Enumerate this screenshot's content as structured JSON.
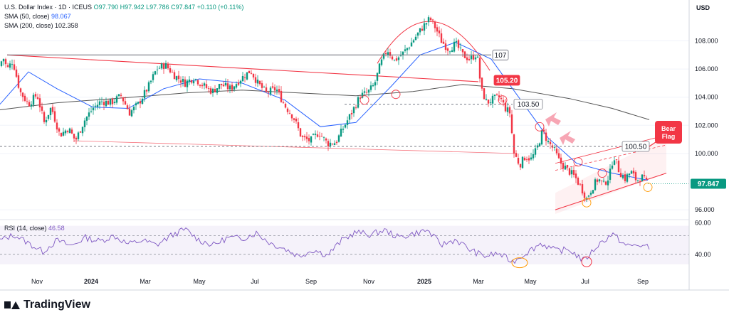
{
  "header": {
    "symbol": "U.S. Dollar Index · 1D · ICEUS",
    "ohlc": "O97.790  H97.942  L97.786  C97.847  +0.110 (+0.11%)",
    "sma50_label": "SMA (50, close)",
    "sma50_value": "98.067",
    "sma200_label": "SMA (200, close)",
    "sma200_value": "102.358",
    "currency": "USD"
  },
  "rsi_panel": {
    "label": "RSI (14, close)",
    "value": "46.58",
    "levels": [
      "60.00",
      "40.00"
    ]
  },
  "brand": {
    "name": "TradingView"
  },
  "colors": {
    "up": "#089981",
    "down": "#f23645",
    "sma50": "#2962ff",
    "sma200": "#555555",
    "rsi": "#7e57c2",
    "trend": "#f23645",
    "accent": "#f23645"
  },
  "chart_data": {
    "type": "candlestick",
    "x_labels": [
      "Nov",
      "2024",
      "Mar",
      "May",
      "Jul",
      "Sep",
      "Nov",
      "2025",
      "Mar",
      "May",
      "Jul",
      "Sep"
    ],
    "y_ticks": [
      "108.000",
      "106.000",
      "104.000",
      "102.000",
      "100.000",
      "96.000"
    ],
    "last_price": "97.847",
    "ylim": [
      95.5,
      110.5
    ],
    "price_path": [
      {
        "t": 0,
        "v": 106.2
      },
      {
        "t": 4,
        "v": 106.9
      },
      {
        "t": 10,
        "v": 106.0
      },
      {
        "t": 18,
        "v": 106.6
      },
      {
        "t": 28,
        "v": 104.4
      },
      {
        "t": 40,
        "v": 103.5
      },
      {
        "t": 52,
        "v": 104.2
      },
      {
        "t": 62,
        "v": 102.2
      },
      {
        "t": 72,
        "v": 103.3
      },
      {
        "t": 84,
        "v": 101.3
      },
      {
        "t": 96,
        "v": 101.8
      },
      {
        "t": 106,
        "v": 100.9
      },
      {
        "t": 118,
        "v": 102.3
      },
      {
        "t": 130,
        "v": 103.2
      },
      {
        "t": 142,
        "v": 103.7
      },
      {
        "t": 156,
        "v": 103.6
      },
      {
        "t": 170,
        "v": 104.1
      },
      {
        "t": 182,
        "v": 102.9
      },
      {
        "t": 194,
        "v": 103.5
      },
      {
        "t": 208,
        "v": 104.7
      },
      {
        "t": 220,
        "v": 106.0
      },
      {
        "t": 232,
        "v": 106.3
      },
      {
        "t": 246,
        "v": 105.5
      },
      {
        "t": 260,
        "v": 105.0
      },
      {
        "t": 272,
        "v": 105.4
      },
      {
        "t": 286,
        "v": 104.8
      },
      {
        "t": 298,
        "v": 104.4
      },
      {
        "t": 310,
        "v": 104.9
      },
      {
        "t": 324,
        "v": 104.6
      },
      {
        "t": 338,
        "v": 105.3
      },
      {
        "t": 352,
        "v": 105.9
      },
      {
        "t": 362,
        "v": 105.0
      },
      {
        "t": 374,
        "v": 104.3
      },
      {
        "t": 388,
        "v": 104.6
      },
      {
        "t": 400,
        "v": 103.4
      },
      {
        "t": 412,
        "v": 102.6
      },
      {
        "t": 424,
        "v": 101.1
      },
      {
        "t": 436,
        "v": 100.9
      },
      {
        "t": 448,
        "v": 101.5
      },
      {
        "t": 460,
        "v": 100.7
      },
      {
        "t": 472,
        "v": 100.8
      },
      {
        "t": 482,
        "v": 101.8
      },
      {
        "t": 494,
        "v": 102.9
      },
      {
        "t": 506,
        "v": 104.1
      },
      {
        "t": 516,
        "v": 104.3
      },
      {
        "t": 526,
        "v": 104.9
      },
      {
        "t": 534,
        "v": 106.3
      },
      {
        "t": 544,
        "v": 107.4
      },
      {
        "t": 554,
        "v": 106.6
      },
      {
        "t": 564,
        "v": 107.0
      },
      {
        "t": 574,
        "v": 107.6
      },
      {
        "t": 584,
        "v": 108.3
      },
      {
        "t": 594,
        "v": 109.0
      },
      {
        "t": 604,
        "v": 109.6
      },
      {
        "t": 612,
        "v": 108.9
      },
      {
        "t": 620,
        "v": 108.0
      },
      {
        "t": 630,
        "v": 107.4
      },
      {
        "t": 640,
        "v": 107.8
      },
      {
        "t": 650,
        "v": 107.0
      },
      {
        "t": 660,
        "v": 106.7
      },
      {
        "t": 670,
        "v": 107.1
      },
      {
        "t": 676,
        "v": 104.5
      },
      {
        "t": 684,
        "v": 103.6
      },
      {
        "t": 694,
        "v": 103.9
      },
      {
        "t": 702,
        "v": 104.0
      },
      {
        "t": 710,
        "v": 103.2
      },
      {
        "t": 716,
        "v": 102.9
      },
      {
        "t": 722,
        "v": 100.0
      },
      {
        "t": 730,
        "v": 99.2
      },
      {
        "t": 738,
        "v": 99.8
      },
      {
        "t": 746,
        "v": 99.6
      },
      {
        "t": 754,
        "v": 100.3
      },
      {
        "t": 762,
        "v": 101.6
      },
      {
        "t": 770,
        "v": 100.8
      },
      {
        "t": 778,
        "v": 100.3
      },
      {
        "t": 786,
        "v": 99.4
      },
      {
        "t": 794,
        "v": 99.0
      },
      {
        "t": 800,
        "v": 98.7
      },
      {
        "t": 808,
        "v": 98.3
      },
      {
        "t": 816,
        "v": 97.6
      },
      {
        "t": 824,
        "v": 96.8
      },
      {
        "t": 832,
        "v": 97.6
      },
      {
        "t": 840,
        "v": 98.2
      },
      {
        "t": 848,
        "v": 97.8
      },
      {
        "t": 856,
        "v": 98.4
      },
      {
        "t": 862,
        "v": 99.9
      },
      {
        "t": 870,
        "v": 98.7
      },
      {
        "t": 878,
        "v": 98.2
      },
      {
        "t": 886,
        "v": 98.7
      },
      {
        "t": 894,
        "v": 98.1
      },
      {
        "t": 902,
        "v": 98.3
      },
      {
        "t": 910,
        "v": 97.8
      }
    ],
    "sma50": [
      {
        "t": 0,
        "v": 103.5
      },
      {
        "t": 40,
        "v": 105.8
      },
      {
        "t": 80,
        "v": 104.6
      },
      {
        "t": 130,
        "v": 103.3
      },
      {
        "t": 180,
        "v": 103.2
      },
      {
        "t": 230,
        "v": 104.6
      },
      {
        "t": 280,
        "v": 105.3
      },
      {
        "t": 340,
        "v": 105.0
      },
      {
        "t": 400,
        "v": 103.8
      },
      {
        "t": 450,
        "v": 101.9
      },
      {
        "t": 500,
        "v": 102.2
      },
      {
        "t": 550,
        "v": 104.8
      },
      {
        "t": 590,
        "v": 107.0
      },
      {
        "t": 640,
        "v": 107.9
      },
      {
        "t": 690,
        "v": 106.7
      },
      {
        "t": 730,
        "v": 103.9
      },
      {
        "t": 770,
        "v": 101.1
      },
      {
        "t": 810,
        "v": 99.3
      },
      {
        "t": 860,
        "v": 98.6
      },
      {
        "t": 910,
        "v": 98.1
      }
    ],
    "sma200": [
      {
        "t": 0,
        "v": 103.1
      },
      {
        "t": 80,
        "v": 103.6
      },
      {
        "t": 160,
        "v": 103.9
      },
      {
        "t": 260,
        "v": 104.3
      },
      {
        "t": 340,
        "v": 104.5
      },
      {
        "t": 420,
        "v": 104.3
      },
      {
        "t": 500,
        "v": 104.1
      },
      {
        "t": 580,
        "v": 104.4
      },
      {
        "t": 650,
        "v": 104.9
      },
      {
        "t": 720,
        "v": 104.6
      },
      {
        "t": 800,
        "v": 103.9
      },
      {
        "t": 860,
        "v": 103.2
      },
      {
        "t": 912,
        "v": 102.4
      }
    ],
    "levels": [
      {
        "label": "107",
        "value": 107.0
      },
      {
        "label": "105.20",
        "value": 105.2
      },
      {
        "label": "103.50",
        "value": 103.5
      },
      {
        "label": "100.50",
        "value": 100.5
      }
    ],
    "annotation": "Bear\nFlag",
    "rsi": {
      "ylim": [
        20,
        75
      ],
      "levels": [
        60,
        40
      ],
      "series": [
        {
          "t": 0,
          "v": 55
        },
        {
          "t": 20,
          "v": 61
        },
        {
          "t": 40,
          "v": 52
        },
        {
          "t": 60,
          "v": 43
        },
        {
          "t": 80,
          "v": 55
        },
        {
          "t": 100,
          "v": 49
        },
        {
          "t": 120,
          "v": 58
        },
        {
          "t": 140,
          "v": 54
        },
        {
          "t": 160,
          "v": 60
        },
        {
          "t": 180,
          "v": 51
        },
        {
          "t": 200,
          "v": 55
        },
        {
          "t": 220,
          "v": 50
        },
        {
          "t": 240,
          "v": 60
        },
        {
          "t": 260,
          "v": 67
        },
        {
          "t": 280,
          "v": 55
        },
        {
          "t": 300,
          "v": 50
        },
        {
          "t": 320,
          "v": 58
        },
        {
          "t": 340,
          "v": 57
        },
        {
          "t": 360,
          "v": 63
        },
        {
          "t": 380,
          "v": 52
        },
        {
          "t": 400,
          "v": 46
        },
        {
          "t": 420,
          "v": 38
        },
        {
          "t": 440,
          "v": 45
        },
        {
          "t": 460,
          "v": 39
        },
        {
          "t": 480,
          "v": 55
        },
        {
          "t": 500,
          "v": 64
        },
        {
          "t": 520,
          "v": 61
        },
        {
          "t": 540,
          "v": 66
        },
        {
          "t": 560,
          "v": 58
        },
        {
          "t": 580,
          "v": 62
        },
        {
          "t": 600,
          "v": 66
        },
        {
          "t": 620,
          "v": 50
        },
        {
          "t": 640,
          "v": 56
        },
        {
          "t": 660,
          "v": 45
        },
        {
          "t": 680,
          "v": 38
        },
        {
          "t": 700,
          "v": 41
        },
        {
          "t": 720,
          "v": 32
        },
        {
          "t": 740,
          "v": 42
        },
        {
          "t": 760,
          "v": 52
        },
        {
          "t": 780,
          "v": 44
        },
        {
          "t": 800,
          "v": 45
        },
        {
          "t": 820,
          "v": 33
        },
        {
          "t": 840,
          "v": 50
        },
        {
          "t": 860,
          "v": 62
        },
        {
          "t": 880,
          "v": 49
        },
        {
          "t": 900,
          "v": 50
        },
        {
          "t": 912,
          "v": 47
        }
      ]
    }
  }
}
